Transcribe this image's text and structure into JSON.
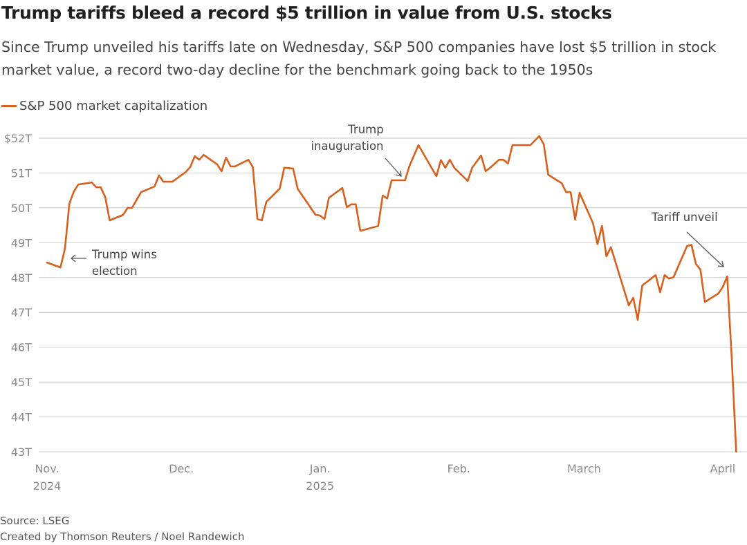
{
  "colors": {
    "line": "#d9601c",
    "grid": "#d4d4d4",
    "arrow": "#555555"
  },
  "chart_data": {
    "type": "line",
    "title": "Trump tariffs bleed a record $5 trillion in value from U.S. stocks",
    "subtitle": "Since Trump unveiled his tariffs late on Wednesday, S&P 500 companies have lost $5 trillion in stock market value, a record two-day decline for the benchmark going back to the 1950s",
    "xlabel": "",
    "ylabel": "",
    "ylim": [
      43,
      52
    ],
    "grid": true,
    "legend_placement": "top-left",
    "y_ticks": [
      {
        "value": 52,
        "label": "$52T"
      },
      {
        "value": 51,
        "label": "51T"
      },
      {
        "value": 50,
        "label": "50T"
      },
      {
        "value": 49,
        "label": "49T"
      },
      {
        "value": 48,
        "label": "48T"
      },
      {
        "value": 47,
        "label": "47T"
      },
      {
        "value": 46,
        "label": "46T"
      },
      {
        "value": 45,
        "label": "45T"
      },
      {
        "value": 44,
        "label": "44T"
      },
      {
        "value": 43,
        "label": "43T"
      }
    ],
    "x_ticks": [
      {
        "date": "2024-11-01",
        "label": "Nov.",
        "sub": "2024"
      },
      {
        "date": "2024-12-01",
        "label": "Dec.",
        "sub": ""
      },
      {
        "date": "2025-01-01",
        "label": "Jan.",
        "sub": "2025"
      },
      {
        "date": "2025-02-01",
        "label": "Feb.",
        "sub": ""
      },
      {
        "date": "2025-03-01",
        "label": "March",
        "sub": ""
      },
      {
        "date": "2025-04-01",
        "label": "April",
        "sub": ""
      }
    ],
    "series": [
      {
        "name": "S&P 500 market capitalization",
        "unit": "trillion USD",
        "points": [
          [
            "2024-11-01",
            48.43
          ],
          [
            "2024-11-04",
            48.29
          ],
          [
            "2024-11-05",
            48.83
          ],
          [
            "2024-11-06",
            50.12
          ],
          [
            "2024-11-07",
            50.47
          ],
          [
            "2024-11-08",
            50.67
          ],
          [
            "2024-11-11",
            50.73
          ],
          [
            "2024-11-12",
            50.59
          ],
          [
            "2024-11-13",
            50.59
          ],
          [
            "2024-11-14",
            50.31
          ],
          [
            "2024-11-15",
            49.64
          ],
          [
            "2024-11-18",
            49.8
          ],
          [
            "2024-11-19",
            50.0
          ],
          [
            "2024-11-20",
            50.0
          ],
          [
            "2024-11-22",
            50.45
          ],
          [
            "2024-11-25",
            50.61
          ],
          [
            "2024-11-26",
            50.93
          ],
          [
            "2024-11-27",
            50.75
          ],
          [
            "2024-11-29",
            50.75
          ],
          [
            "2024-12-02",
            51.03
          ],
          [
            "2024-12-03",
            51.17
          ],
          [
            "2024-12-04",
            51.48
          ],
          [
            "2024-12-05",
            51.38
          ],
          [
            "2024-12-06",
            51.52
          ],
          [
            "2024-12-09",
            51.25
          ],
          [
            "2024-12-10",
            51.05
          ],
          [
            "2024-12-11",
            51.44
          ],
          [
            "2024-12-12",
            51.19
          ],
          [
            "2024-12-13",
            51.19
          ],
          [
            "2024-12-16",
            51.38
          ],
          [
            "2024-12-17",
            51.17
          ],
          [
            "2024-12-18",
            49.68
          ],
          [
            "2024-12-19",
            49.64
          ],
          [
            "2024-12-20",
            50.17
          ],
          [
            "2024-12-23",
            50.55
          ],
          [
            "2024-12-24",
            51.15
          ],
          [
            "2024-12-26",
            51.13
          ],
          [
            "2024-12-27",
            50.55
          ],
          [
            "2024-12-31",
            49.8
          ],
          [
            "2025-01-01",
            49.78
          ],
          [
            "2025-01-02",
            49.68
          ],
          [
            "2025-01-03",
            50.29
          ],
          [
            "2025-01-06",
            50.57
          ],
          [
            "2025-01-07",
            50.02
          ],
          [
            "2025-01-08",
            50.1
          ],
          [
            "2025-01-09",
            50.1
          ],
          [
            "2025-01-10",
            49.34
          ],
          [
            "2025-01-14",
            49.48
          ],
          [
            "2025-01-15",
            50.35
          ],
          [
            "2025-01-16",
            50.27
          ],
          [
            "2025-01-17",
            50.79
          ],
          [
            "2025-01-20",
            50.79
          ],
          [
            "2025-01-21",
            51.21
          ],
          [
            "2025-01-23",
            51.8
          ],
          [
            "2025-01-27",
            50.91
          ],
          [
            "2025-01-28",
            51.37
          ],
          [
            "2025-01-29",
            51.15
          ],
          [
            "2025-01-30",
            51.38
          ],
          [
            "2025-01-31",
            51.15
          ],
          [
            "2025-02-03",
            50.77
          ],
          [
            "2025-02-04",
            51.15
          ],
          [
            "2025-02-06",
            51.5
          ],
          [
            "2025-02-07",
            51.05
          ],
          [
            "2025-02-08",
            51.15
          ],
          [
            "2025-02-10",
            51.38
          ],
          [
            "2025-02-11",
            51.38
          ],
          [
            "2025-02-12",
            51.27
          ],
          [
            "2025-02-13",
            51.8
          ],
          [
            "2025-02-17",
            51.8
          ],
          [
            "2025-02-19",
            52.06
          ],
          [
            "2025-02-20",
            51.82
          ],
          [
            "2025-02-21",
            50.95
          ],
          [
            "2025-02-24",
            50.71
          ],
          [
            "2025-02-25",
            50.45
          ],
          [
            "2025-02-26",
            50.45
          ],
          [
            "2025-02-27",
            49.66
          ],
          [
            "2025-02-28",
            50.43
          ],
          [
            "2025-03-03",
            49.56
          ],
          [
            "2025-03-04",
            48.96
          ],
          [
            "2025-03-05",
            49.48
          ],
          [
            "2025-03-06",
            48.61
          ],
          [
            "2025-03-07",
            48.87
          ],
          [
            "2025-03-11",
            47.2
          ],
          [
            "2025-03-12",
            47.42
          ],
          [
            "2025-03-13",
            46.78
          ],
          [
            "2025-03-14",
            47.77
          ],
          [
            "2025-03-17",
            48.07
          ],
          [
            "2025-03-18",
            47.58
          ],
          [
            "2025-03-19",
            48.07
          ],
          [
            "2025-03-20",
            47.97
          ],
          [
            "2025-03-21",
            48.01
          ],
          [
            "2025-03-24",
            48.9
          ],
          [
            "2025-03-25",
            48.94
          ],
          [
            "2025-03-26",
            48.39
          ],
          [
            "2025-03-27",
            48.23
          ],
          [
            "2025-03-28",
            47.3
          ],
          [
            "2025-03-31",
            47.54
          ],
          [
            "2025-04-01",
            47.73
          ],
          [
            "2025-04-02",
            48.03
          ],
          [
            "2025-04-03",
            45.7
          ],
          [
            "2025-04-04",
            43.0
          ]
        ]
      }
    ],
    "annotations": [
      {
        "line1": "Trump wins",
        "line2": "election"
      },
      {
        "line1": "Trump",
        "line2": "inauguration"
      },
      {
        "line1": "Tariff unveil",
        "line2": ""
      }
    ]
  },
  "footer": {
    "source": "Source: LSEG",
    "credit": "Created by Thomson Reuters / Noel Randewich"
  }
}
